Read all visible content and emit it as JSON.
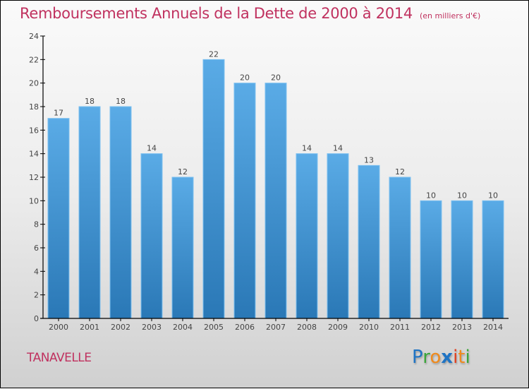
{
  "header": {
    "title": "Remboursements Annuels de la Dette de 2000 à 2014",
    "unit": "(en milliers d'€)"
  },
  "footer": {
    "commune": "TANAVELLE",
    "logo": {
      "letters": [
        "P",
        "r",
        "o",
        "x",
        "i",
        "t",
        "i"
      ],
      "colors": [
        "#1f74c4",
        "#3aa53a",
        "#f08a1c",
        "#1f74c4",
        "#e04020",
        "#f08a1c",
        "#3aa53a"
      ]
    }
  },
  "colors": {
    "title": "#c0315f",
    "bar_top": "#5aabe6",
    "bar_bottom": "#2a78b6",
    "bar_edge": "#7cc0f0"
  },
  "chart_data": {
    "type": "bar",
    "title": "Remboursements Annuels de la Dette de 2000 à 2014",
    "subtitle": "(en milliers d'€)",
    "xlabel": "",
    "ylabel": "",
    "categories": [
      "2000",
      "2001",
      "2002",
      "2003",
      "2004",
      "2005",
      "2006",
      "2007",
      "2008",
      "2009",
      "2010",
      "2011",
      "2012",
      "2013",
      "2014"
    ],
    "values": [
      17,
      18,
      18,
      14,
      12,
      22,
      20,
      20,
      14,
      14,
      13,
      12,
      10,
      10,
      10
    ],
    "ylim": [
      0,
      24
    ],
    "yticks": [
      0,
      2,
      4,
      6,
      8,
      10,
      12,
      14,
      16,
      18,
      20,
      22,
      24
    ],
    "grid": false,
    "legend": "none",
    "data_labels": true
  }
}
